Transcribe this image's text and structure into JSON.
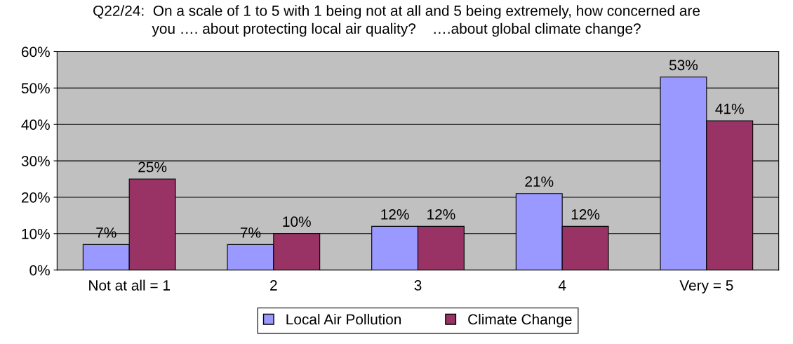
{
  "chart_data": {
    "type": "bar",
    "title": "Q22/24:  On a scale of 1 to 5 with 1 being not at all and 5 being extremely, how concerned are\nyou …. about protecting local air quality?    ….about global climate change?",
    "categories": [
      "Not at all = 1",
      "2",
      "3",
      "4",
      "Very = 5"
    ],
    "series": [
      {
        "name": "Local Air Pollution",
        "color": "#9999ff",
        "values": [
          7,
          7,
          12,
          21,
          53
        ]
      },
      {
        "name": "Climate Change",
        "color": "#993366",
        "values": [
          25,
          10,
          12,
          12,
          41
        ]
      }
    ],
    "ylim": [
      0,
      60
    ],
    "yticks": [
      {
        "value": 0,
        "label": "0%"
      },
      {
        "value": 10,
        "label": "10%"
      },
      {
        "value": 20,
        "label": "20%"
      },
      {
        "value": 30,
        "label": "30%"
      },
      {
        "value": 40,
        "label": "40%"
      },
      {
        "value": 50,
        "label": "50%"
      },
      {
        "value": 60,
        "label": "60%"
      }
    ],
    "value_labels": [
      [
        "7%",
        "7%",
        "12%",
        "21%",
        "53%"
      ],
      [
        "25%",
        "10%",
        "12%",
        "12%",
        "41%"
      ]
    ],
    "grid": "y",
    "legend": "bottom"
  }
}
